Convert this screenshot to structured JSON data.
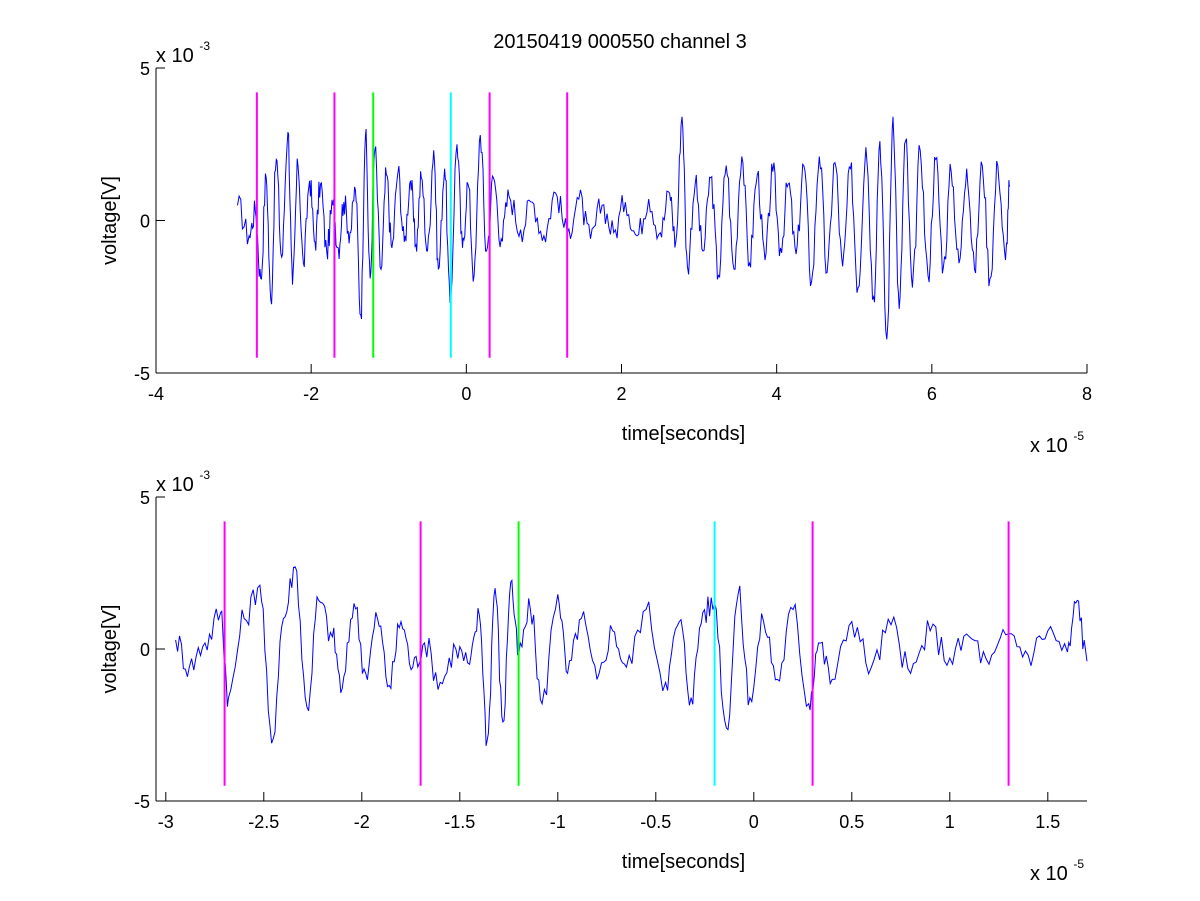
{
  "title": "20150419 000550 channel 3",
  "colors": {
    "signal": "#0000ff",
    "marker_magenta": "#ff00ff",
    "marker_green": "#00ff00",
    "marker_cyan": "#00ffff"
  },
  "chart_data": [
    {
      "type": "line",
      "title": "20150419 000550 channel 3",
      "xlabel": "time[seconds]",
      "ylabel": "voltage[V]",
      "x_exponent": "x 10",
      "x_exponent_power": "-5",
      "y_exponent": "x 10",
      "y_exponent_power": "-3",
      "xlim": [
        -4,
        8
      ],
      "ylim": [
        -5,
        5
      ],
      "x_unit_scale": "1e-5",
      "y_unit_scale": "1e-3",
      "xticks": [
        -4,
        -2,
        0,
        2,
        4,
        6,
        8
      ],
      "xtick_labels": [
        "-4",
        "-2",
        "0",
        "2",
        "4",
        "6",
        "8"
      ],
      "yticks": [
        -5,
        0,
        5
      ],
      "ytick_labels": [
        "-5",
        "0",
        "5"
      ],
      "grid": false,
      "series": [
        {
          "x_range": [
            -2.95,
            7.0
          ],
          "points": [
            [
              -2.95,
              0.5
            ],
            [
              -2.8,
              -0.5
            ],
            [
              -2.72,
              0.3
            ],
            [
              -2.65,
              -1.9
            ],
            [
              -2.58,
              1.4
            ],
            [
              -2.52,
              -2.6
            ],
            [
              -2.45,
              2.0
            ],
            [
              -2.38,
              -1.2
            ],
            [
              -2.3,
              2.9
            ],
            [
              -2.24,
              -2.1
            ],
            [
              -2.17,
              1.8
            ],
            [
              -2.1,
              -1.4
            ],
            [
              -2.02,
              1.3
            ],
            [
              -1.95,
              -0.7
            ],
            [
              -1.88,
              1.2
            ],
            [
              -1.8,
              -1.0
            ],
            [
              -1.72,
              0.5
            ],
            [
              -1.65,
              -0.9
            ],
            [
              -1.58,
              0.6
            ],
            [
              -1.5,
              -0.4
            ],
            [
              -1.43,
              1.0
            ],
            [
              -1.36,
              -3.1
            ],
            [
              -1.3,
              2.8
            ],
            [
              -1.24,
              -1.9
            ],
            [
              -1.18,
              2.3
            ],
            [
              -1.1,
              -1.6
            ],
            [
              -1.03,
              1.5
            ],
            [
              -0.96,
              -0.9
            ],
            [
              -0.88,
              1.6
            ],
            [
              -0.8,
              -0.7
            ],
            [
              -0.72,
              1.3
            ],
            [
              -0.65,
              -0.8
            ],
            [
              -0.58,
              1.4
            ],
            [
              -0.5,
              -1.0
            ],
            [
              -0.42,
              2.3
            ],
            [
              -0.36,
              -1.6
            ],
            [
              -0.28,
              1.7
            ],
            [
              -0.21,
              -2.7
            ],
            [
              -0.12,
              2.5
            ],
            [
              -0.05,
              -0.9
            ],
            [
              0.02,
              1.2
            ],
            [
              0.1,
              -1.8
            ],
            [
              0.18,
              2.8
            ],
            [
              0.26,
              -1.0
            ],
            [
              0.35,
              1.4
            ],
            [
              0.45,
              -0.6
            ],
            [
              0.55,
              0.8
            ],
            [
              0.7,
              -0.3
            ],
            [
              0.85,
              0.6
            ],
            [
              1.0,
              -0.5
            ],
            [
              1.15,
              0.9
            ],
            [
              1.3,
              -0.4
            ],
            [
              1.45,
              0.7
            ],
            [
              1.6,
              -0.6
            ],
            [
              1.75,
              0.5
            ],
            [
              1.9,
              -0.4
            ],
            [
              2.05,
              0.6
            ],
            [
              2.2,
              -0.5
            ],
            [
              2.35,
              0.7
            ],
            [
              2.5,
              -0.4
            ],
            [
              2.62,
              0.9
            ],
            [
              2.7,
              -0.7
            ],
            [
              2.78,
              3.4
            ],
            [
              2.85,
              -1.5
            ],
            [
              2.95,
              1.2
            ],
            [
              3.05,
              -1.0
            ],
            [
              3.15,
              1.4
            ],
            [
              3.25,
              -1.8
            ],
            [
              3.35,
              1.8
            ],
            [
              3.45,
              -1.6
            ],
            [
              3.55,
              2.1
            ],
            [
              3.65,
              -1.4
            ],
            [
              3.75,
              1.5
            ],
            [
              3.85,
              -1.3
            ],
            [
              3.95,
              1.6
            ],
            [
              4.05,
              -0.9
            ],
            [
              4.15,
              1.2
            ],
            [
              4.25,
              -1.1
            ],
            [
              4.35,
              1.8
            ],
            [
              4.45,
              -2.0
            ],
            [
              4.55,
              2.1
            ],
            [
              4.65,
              -1.7
            ],
            [
              4.75,
              1.9
            ],
            [
              4.85,
              -1.5
            ],
            [
              4.95,
              1.7
            ],
            [
              5.05,
              -2.2
            ],
            [
              5.15,
              2.4
            ],
            [
              5.25,
              -2.5
            ],
            [
              5.33,
              2.6
            ],
            [
              5.42,
              -3.9
            ],
            [
              5.5,
              3.4
            ],
            [
              5.58,
              -2.9
            ],
            [
              5.66,
              2.6
            ],
            [
              5.75,
              -2.2
            ],
            [
              5.85,
              2.3
            ],
            [
              5.95,
              -1.8
            ],
            [
              6.05,
              2.0
            ],
            [
              6.15,
              -1.5
            ],
            [
              6.25,
              1.6
            ],
            [
              6.35,
              -1.4
            ],
            [
              6.45,
              1.7
            ],
            [
              6.55,
              -1.6
            ],
            [
              6.65,
              1.8
            ],
            [
              6.75,
              -1.9
            ],
            [
              6.85,
              1.8
            ],
            [
              6.95,
              -1.3
            ],
            [
              7.0,
              1.1
            ]
          ]
        }
      ],
      "markers": [
        {
          "x": -2.7,
          "color": "magenta"
        },
        {
          "x": -1.7,
          "color": "magenta"
        },
        {
          "x": -1.2,
          "color": "green"
        },
        {
          "x": -0.2,
          "color": "cyan"
        },
        {
          "x": 0.3,
          "color": "magenta"
        },
        {
          "x": 1.3,
          "color": "magenta"
        }
      ],
      "marker_y_range": [
        -4.5,
        4.2
      ]
    },
    {
      "type": "line",
      "xlabel": "time[seconds]",
      "ylabel": "voltage[V]",
      "x_exponent": "x 10",
      "x_exponent_power": "-5",
      "y_exponent": "x 10",
      "y_exponent_power": "-3",
      "xlim": [
        -3.05,
        1.7
      ],
      "ylim": [
        -5,
        5
      ],
      "x_unit_scale": "1e-5",
      "y_unit_scale": "1e-3",
      "xticks": [
        -3,
        -2.5,
        -2,
        -1.5,
        -1,
        -0.5,
        0,
        0.5,
        1,
        1.5
      ],
      "xtick_labels": [
        "-3",
        "-2.5",
        "-2",
        "-1.5",
        "-1",
        "-0.5",
        "0",
        "0.5",
        "1",
        "1.5"
      ],
      "yticks": [
        -5,
        0,
        5
      ],
      "ytick_labels": [
        "-5",
        "0",
        "5"
      ],
      "grid": false,
      "series": [
        {
          "x_range": [
            -2.95,
            1.7
          ],
          "points": [
            [
              -2.95,
              0.3
            ],
            [
              -2.88,
              -0.6
            ],
            [
              -2.8,
              0.2
            ],
            [
              -2.72,
              1.2
            ],
            [
              -2.68,
              -1.6
            ],
            [
              -2.6,
              1.0
            ],
            [
              -2.52,
              2.1
            ],
            [
              -2.46,
              -3.1
            ],
            [
              -2.4,
              1.0
            ],
            [
              -2.34,
              2.7
            ],
            [
              -2.28,
              -1.9
            ],
            [
              -2.22,
              1.6
            ],
            [
              -2.15,
              0.4
            ],
            [
              -2.1,
              -1.3
            ],
            [
              -2.04,
              1.5
            ],
            [
              -1.98,
              -0.8
            ],
            [
              -1.92,
              1.0
            ],
            [
              -1.86,
              -1.2
            ],
            [
              -1.8,
              0.9
            ],
            [
              -1.74,
              -0.6
            ],
            [
              -1.68,
              0.2
            ],
            [
              -1.6,
              -1.1
            ],
            [
              -1.52,
              0.0
            ],
            [
              -1.45,
              -0.5
            ],
            [
              -1.4,
              1.1
            ],
            [
              -1.36,
              -3.0
            ],
            [
              -1.32,
              2.0
            ],
            [
              -1.28,
              -2.4
            ],
            [
              -1.24,
              2.2
            ],
            [
              -1.2,
              -0.2
            ],
            [
              -1.14,
              1.3
            ],
            [
              -1.08,
              -1.8
            ],
            [
              -1.0,
              1.8
            ],
            [
              -0.95,
              -0.8
            ],
            [
              -0.88,
              1.0
            ],
            [
              -0.8,
              -1.0
            ],
            [
              -0.72,
              0.6
            ],
            [
              -0.65,
              -0.6
            ],
            [
              -0.55,
              1.3
            ],
            [
              -0.45,
              -1.1
            ],
            [
              -0.38,
              0.9
            ],
            [
              -0.32,
              -1.6
            ],
            [
              -0.26,
              1.2
            ],
            [
              -0.2,
              1.5
            ],
            [
              -0.14,
              -2.6
            ],
            [
              -0.08,
              1.8
            ],
            [
              -0.02,
              -1.6
            ],
            [
              0.05,
              0.9
            ],
            [
              0.12,
              -1.0
            ],
            [
              0.2,
              1.3
            ],
            [
              0.28,
              -1.8
            ],
            [
              0.33,
              0.2
            ],
            [
              0.4,
              -1.0
            ],
            [
              0.5,
              0.9
            ],
            [
              0.6,
              -0.6
            ],
            [
              0.7,
              0.8
            ],
            [
              0.8,
              -0.8
            ],
            [
              0.9,
              0.6
            ],
            [
              1.0,
              -0.3
            ],
            [
              1.1,
              0.4
            ],
            [
              1.2,
              -0.5
            ],
            [
              1.3,
              0.5
            ],
            [
              1.4,
              -0.2
            ],
            [
              1.5,
              0.6
            ],
            [
              1.6,
              -0.1
            ],
            [
              1.65,
              1.6
            ],
            [
              1.7,
              -0.4
            ]
          ]
        }
      ],
      "markers": [
        {
          "x": -2.7,
          "color": "magenta"
        },
        {
          "x": -1.7,
          "color": "magenta"
        },
        {
          "x": -1.2,
          "color": "green"
        },
        {
          "x": -0.2,
          "color": "cyan"
        },
        {
          "x": 0.3,
          "color": "magenta"
        },
        {
          "x": 1.3,
          "color": "magenta"
        }
      ],
      "marker_y_range": [
        -4.5,
        4.2
      ]
    }
  ]
}
